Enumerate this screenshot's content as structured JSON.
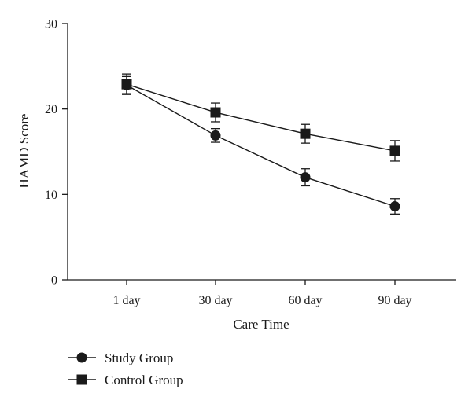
{
  "chart_data": {
    "type": "line",
    "title": "",
    "xlabel": "Care Time",
    "ylabel": "HAMD Score",
    "categories": [
      "1 day",
      "30 day",
      "60 day",
      "90 day"
    ],
    "ylim": [
      0,
      30
    ],
    "yticks": [
      0,
      10,
      20,
      30
    ],
    "grid": false,
    "legend": "bottom-left",
    "series": [
      {
        "name": "Study Group",
        "marker": "circle",
        "values": [
          22.8,
          16.9,
          12.0,
          8.6
        ],
        "error": [
          1.0,
          0.8,
          1.0,
          0.9
        ]
      },
      {
        "name": "Control Group",
        "marker": "square",
        "values": [
          22.9,
          19.6,
          17.1,
          15.1
        ],
        "error": [
          1.2,
          1.1,
          1.1,
          1.2
        ]
      }
    ],
    "colors": {
      "ink": "#1a1a1a"
    }
  }
}
